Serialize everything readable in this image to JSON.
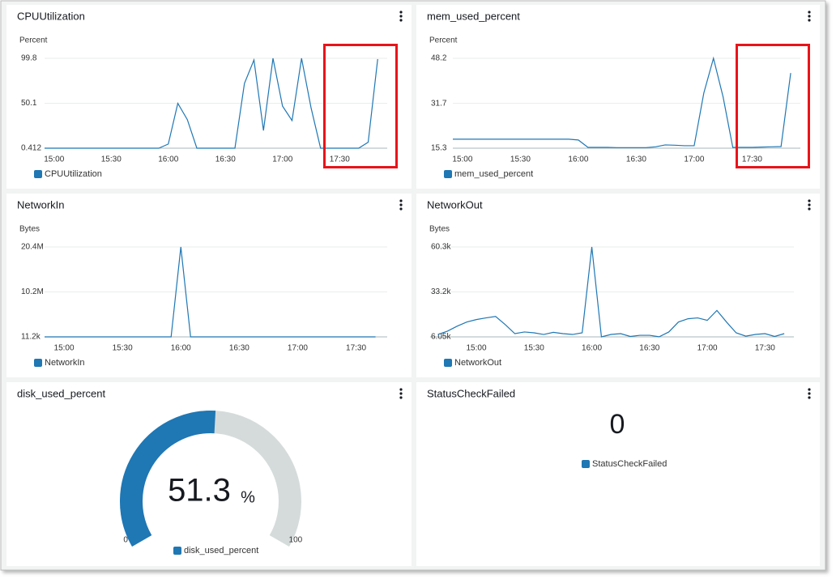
{
  "chart_data": [
    {
      "type": "line",
      "title": "CPUUtilization",
      "y_label": "Percent",
      "x": [
        "14:55",
        "15:00",
        "15:05",
        "15:10",
        "15:15",
        "15:20",
        "15:25",
        "15:30",
        "15:35",
        "15:40",
        "15:45",
        "15:50",
        "15:55",
        "16:00",
        "16:05",
        "16:10",
        "16:15",
        "16:20",
        "16:25",
        "16:30",
        "16:35",
        "16:40",
        "16:45",
        "16:50",
        "16:55",
        "17:00",
        "17:05",
        "17:10",
        "17:15",
        "17:20",
        "17:25",
        "17:30",
        "17:35",
        "17:40",
        "17:45",
        "17:50"
      ],
      "series": [
        {
          "name": "CPUUtilization",
          "color": "#1f77b4",
          "values": [
            0.412,
            0.412,
            0.412,
            0.412,
            0.412,
            0.412,
            0.412,
            0.412,
            0.412,
            0.412,
            0.412,
            0.412,
            0.412,
            5,
            50,
            32,
            0.412,
            0.412,
            0.412,
            0.412,
            0.412,
            72,
            98,
            20,
            99.8,
            47,
            31,
            99.8,
            45,
            0.412,
            0.412,
            0.412,
            0.412,
            0.412,
            7,
            99
          ]
        }
      ],
      "xlim": [
        "14:55",
        "17:55"
      ],
      "xticks": [
        "15:00",
        "15:30",
        "16:00",
        "16:30",
        "17:00",
        "17:30"
      ],
      "ylim": [
        0.412,
        99.8
      ],
      "yticks": [
        0.412,
        50.1,
        99.8
      ],
      "grid": true
    },
    {
      "type": "line",
      "title": "mem_used_percent",
      "y_label": "Percent",
      "x": [
        "14:55",
        "15:00",
        "15:05",
        "15:10",
        "15:15",
        "15:20",
        "15:25",
        "15:30",
        "15:35",
        "15:40",
        "15:45",
        "15:50",
        "15:55",
        "16:00",
        "16:05",
        "16:10",
        "16:15",
        "16:20",
        "16:25",
        "16:30",
        "16:35",
        "16:40",
        "16:45",
        "16:50",
        "16:55",
        "17:00",
        "17:05",
        "17:10",
        "17:15",
        "17:20",
        "17:25",
        "17:30",
        "17:35",
        "17:40",
        "17:45",
        "17:50"
      ],
      "series": [
        {
          "name": "mem_used_percent",
          "color": "#1f77b4",
          "values": [
            18.6,
            18.6,
            18.6,
            18.6,
            18.6,
            18.6,
            18.6,
            18.6,
            18.6,
            18.6,
            18.6,
            18.6,
            18.6,
            18.3,
            15.6,
            15.6,
            15.6,
            15.5,
            15.5,
            15.5,
            15.5,
            15.8,
            16.5,
            16.4,
            16.2,
            16.2,
            35.5,
            48.2,
            34,
            15.6,
            15.6,
            15.6,
            15.7,
            15.8,
            15.9,
            42.8
          ]
        }
      ],
      "xlim": [
        "14:55",
        "17:55"
      ],
      "xticks": [
        "15:00",
        "15:30",
        "16:00",
        "16:30",
        "17:00",
        "17:30"
      ],
      "ylim": [
        15.3,
        48.2
      ],
      "yticks": [
        15.3,
        31.7,
        48.2
      ],
      "grid": true
    },
    {
      "type": "line",
      "title": "NetworkIn",
      "y_label": "Bytes",
      "x": [
        "14:50",
        "14:55",
        "15:00",
        "15:05",
        "15:10",
        "15:15",
        "15:20",
        "15:25",
        "15:30",
        "15:35",
        "15:40",
        "15:45",
        "15:50",
        "15:55",
        "16:00",
        "16:05",
        "16:10",
        "16:15",
        "16:20",
        "16:25",
        "16:30",
        "16:35",
        "16:40",
        "16:45",
        "16:50",
        "16:55",
        "17:00",
        "17:05",
        "17:10",
        "17:15",
        "17:20",
        "17:25",
        "17:30",
        "17:35",
        "17:40"
      ],
      "series": [
        {
          "name": "NetworkIn",
          "color": "#1f77b4",
          "values": [
            11200,
            11200,
            11200,
            11200,
            11200,
            11200,
            11200,
            11200,
            11200,
            11200,
            11200,
            11200,
            11200,
            11200,
            20400000,
            11200,
            11200,
            11200,
            11200,
            11200,
            11200,
            11200,
            11200,
            11200,
            11200,
            11200,
            11200,
            11200,
            11200,
            11200,
            11200,
            11200,
            11200,
            11200,
            11200
          ]
        }
      ],
      "xlim": [
        "14:50",
        "17:46"
      ],
      "xticks": [
        "15:00",
        "15:30",
        "16:00",
        "16:30",
        "17:00",
        "17:30"
      ],
      "ylim": [
        11200,
        20400000
      ],
      "yticks": [
        {
          "value": 11200,
          "label": "11.2k"
        },
        {
          "value": 10200000,
          "label": "10.2M"
        },
        {
          "value": 20400000,
          "label": "20.4M"
        }
      ],
      "grid": true
    },
    {
      "type": "line",
      "title": "NetworkOut",
      "y_label": "Bytes",
      "x": [
        "14:40",
        "14:45",
        "14:50",
        "14:55",
        "15:00",
        "15:05",
        "15:10",
        "15:15",
        "15:20",
        "15:25",
        "15:30",
        "15:35",
        "15:40",
        "15:45",
        "15:50",
        "15:55",
        "16:00",
        "16:05",
        "16:10",
        "16:15",
        "16:20",
        "16:25",
        "16:30",
        "16:35",
        "16:40",
        "16:45",
        "16:50",
        "16:55",
        "17:00",
        "17:05",
        "17:10",
        "17:15",
        "17:20",
        "17:25",
        "17:30",
        "17:35",
        "17:40"
      ],
      "series": [
        {
          "name": "NetworkOut",
          "color": "#1f77b4",
          "values": [
            7500,
            9500,
            12500,
            15000,
            16500,
            17500,
            18400,
            13500,
            8000,
            9000,
            8500,
            7500,
            8800,
            8000,
            7500,
            8500,
            60300,
            6050,
            7500,
            8000,
            6300,
            7000,
            7000,
            6100,
            9000,
            15000,
            17000,
            17500,
            16000,
            22000,
            15000,
            8500,
            6500,
            7500,
            8000,
            6300,
            8000
          ]
        }
      ],
      "xlim": [
        "14:36",
        "17:45"
      ],
      "xticks": [
        "15:00",
        "15:30",
        "16:00",
        "16:30",
        "17:00",
        "17:30"
      ],
      "ylim": [
        6050,
        60300
      ],
      "yticks": [
        {
          "value": 6050,
          "label": "6.05k"
        },
        {
          "value": 33200,
          "label": "33.2k"
        },
        {
          "value": 60300,
          "label": "60.3k"
        }
      ],
      "grid": true
    },
    {
      "type": "gauge",
      "title": "disk_used_percent",
      "series": [
        {
          "name": "disk_used_percent",
          "color": "#1f77b4",
          "values": [
            51.3
          ]
        }
      ],
      "unit": "%",
      "ylim": [
        0,
        100
      ],
      "yticks": [
        0,
        100
      ]
    },
    {
      "type": "number",
      "title": "StatusCheckFailed",
      "series": [
        {
          "name": "StatusCheckFailed",
          "color": "#1f77b4",
          "values": [
            0
          ]
        }
      ]
    }
  ]
}
